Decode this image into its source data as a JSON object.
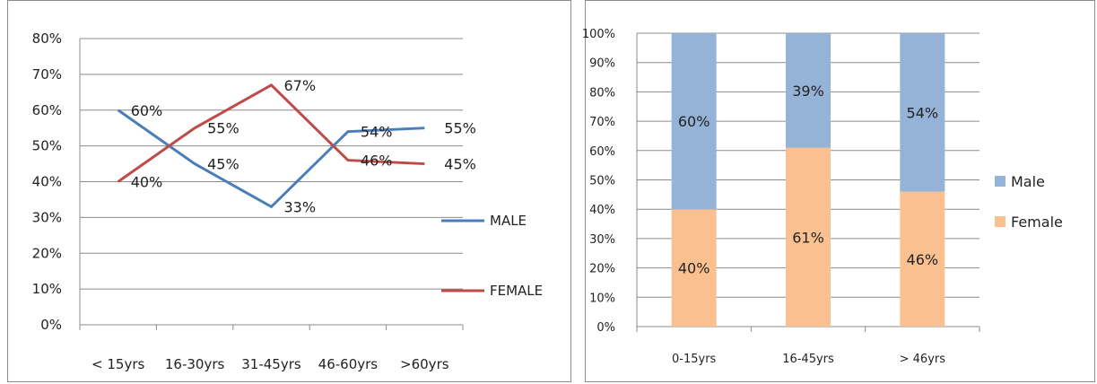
{
  "chart_data": [
    {
      "type": "line",
      "categories": [
        "< 15yrs",
        "16-30yrs",
        "31-45yrs",
        "46-60yrs",
        ">60yrs"
      ],
      "y_ticks": [
        "0%",
        "10%",
        "20%",
        "30%",
        "40%",
        "50%",
        "60%",
        "70%",
        "80%"
      ],
      "ylim": [
        0,
        80
      ],
      "grid": true,
      "legend_position": "right",
      "series": [
        {
          "name": "MALE",
          "color": "#4a7ebb",
          "values": [
            60,
            45,
            33,
            54,
            55
          ],
          "labels": [
            "60%",
            "45%",
            "33%",
            "54%",
            "55%"
          ]
        },
        {
          "name": "FEMALE",
          "color": "#be4b48",
          "values": [
            40,
            55,
            67,
            46,
            45
          ],
          "labels": [
            "40%",
            "55%",
            "67%",
            "46%",
            "45%"
          ]
        }
      ]
    },
    {
      "type": "bar",
      "stacked": true,
      "categories": [
        "0-15yrs",
        "16-45yrs",
        "> 46yrs"
      ],
      "y_ticks": [
        "0%",
        "10%",
        "20%",
        "30%",
        "40%",
        "50%",
        "60%",
        "70%",
        "80%",
        "90%",
        "100%"
      ],
      "ylim": [
        0,
        100
      ],
      "grid": true,
      "legend_position": "right",
      "series": [
        {
          "name": "Female",
          "color": "#fac090",
          "values": [
            40,
            61,
            46
          ],
          "labels": [
            "40%",
            "61%",
            "46%"
          ]
        },
        {
          "name": "Male",
          "color": "#95b3d7",
          "values": [
            60,
            39,
            54
          ],
          "labels": [
            "60%",
            "39%",
            "54%"
          ]
        }
      ]
    }
  ]
}
